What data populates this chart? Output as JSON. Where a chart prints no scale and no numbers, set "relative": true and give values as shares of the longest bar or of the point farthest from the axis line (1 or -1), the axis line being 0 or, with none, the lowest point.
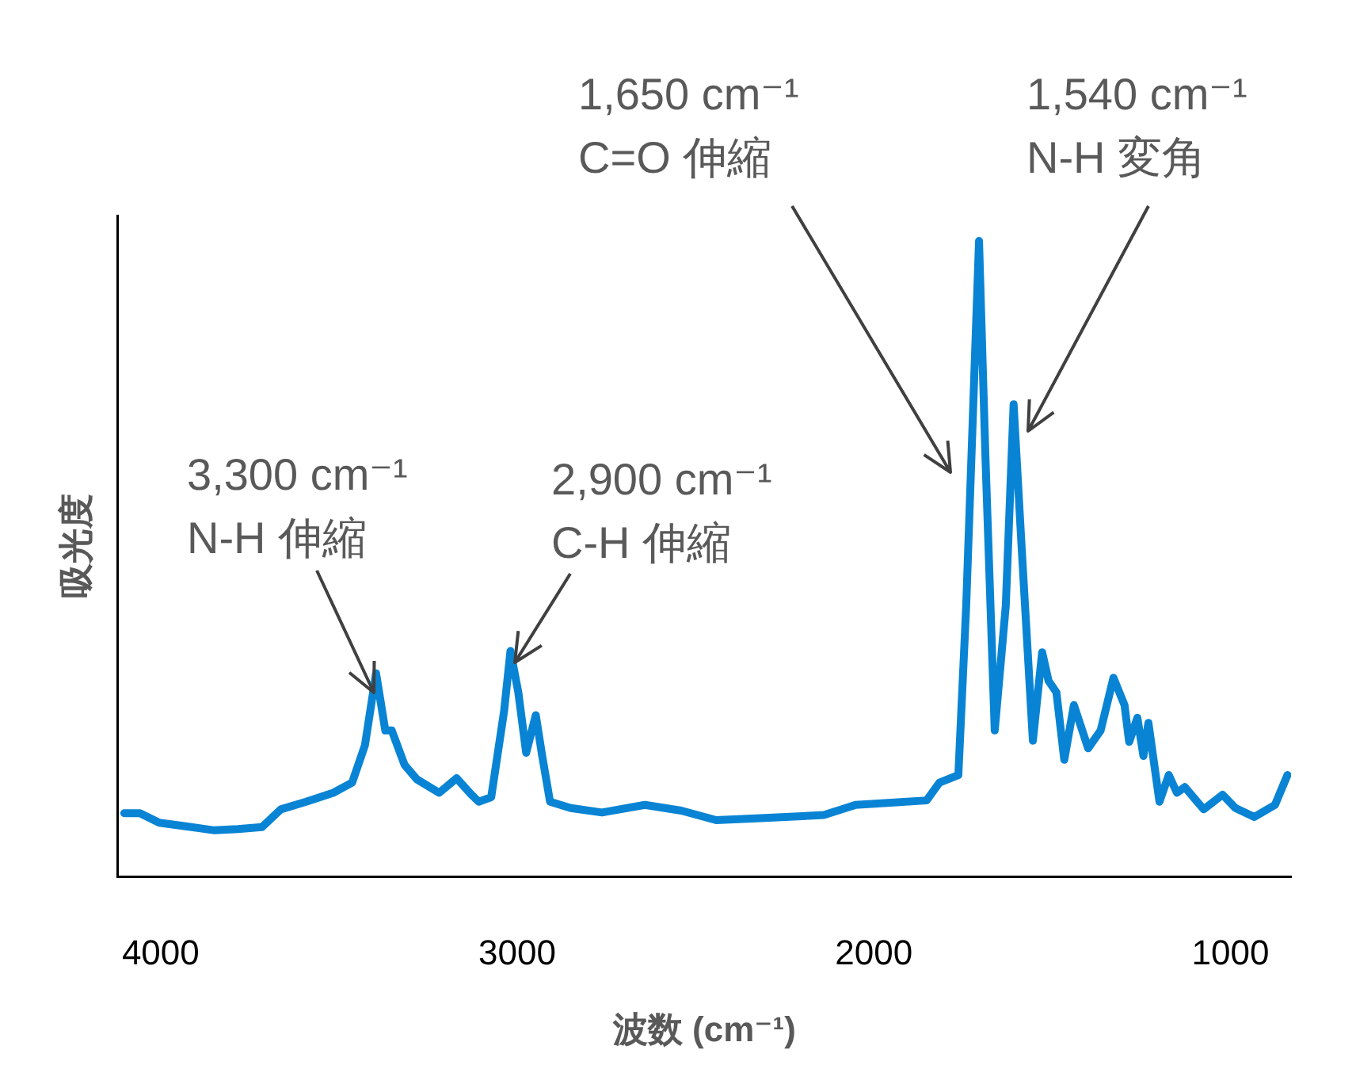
{
  "chart_data": {
    "type": "line",
    "xlabel": "波数 (cm⁻¹)",
    "ylabel": "吸光度",
    "relative": true,
    "xlim": [
      4120,
      830
    ],
    "xticks": [
      4000,
      3000,
      2000,
      1000
    ],
    "grid": false,
    "legend": false,
    "marker": "none",
    "line_style": "solid",
    "x": [
      4102,
      4058,
      4004,
      3938,
      3849,
      3783,
      3716,
      3663,
      3592,
      3516,
      3463,
      3427,
      3396,
      3370,
      3352,
      3316,
      3281,
      3219,
      3170,
      3130,
      3108,
      3073,
      3037,
      3019,
      2997,
      2975,
      2948,
      2930,
      2908,
      2850,
      2762,
      2642,
      2540,
      2442,
      2318,
      2140,
      2051,
      1852,
      1816,
      1763,
      1741,
      1705,
      1687,
      1661,
      1630,
      1608,
      1585,
      1554,
      1528,
      1510,
      1488,
      1466,
      1439,
      1399,
      1364,
      1328,
      1297,
      1284,
      1261,
      1244,
      1230,
      1199,
      1173,
      1150,
      1128,
      1075,
      1022,
      986,
      933,
      875,
      840
    ],
    "series": [
      {
        "color": "#0984d4",
        "values": [
          0.1,
          0.1,
          0.085,
          0.08,
          0.073,
          0.075,
          0.078,
          0.106,
          0.118,
          0.132,
          0.148,
          0.207,
          0.32,
          0.23,
          0.23,
          0.176,
          0.153,
          0.132,
          0.155,
          0.13,
          0.118,
          0.125,
          0.26,
          0.355,
          0.29,
          0.195,
          0.254,
          0.19,
          0.118,
          0.108,
          0.101,
          0.113,
          0.104,
          0.089,
          0.092,
          0.097,
          0.113,
          0.12,
          0.148,
          0.16,
          0.426,
          1,
          0.66,
          0.23,
          0.426,
          0.743,
          0.513,
          0.214,
          0.353,
          0.308,
          0.29,
          0.184,
          0.27,
          0.202,
          0.23,
          0.313,
          0.27,
          0.212,
          0.25,
          0.19,
          0.242,
          0.118,
          0.16,
          0.132,
          0.141,
          0.106,
          0.129,
          0.108,
          0.094,
          0.113,
          0.16
        ]
      }
    ],
    "annotations": [
      "3,300 cm⁻¹\nN-H 伸縮",
      "2,900 cm⁻¹\nC-H 伸縮",
      "1,650 cm⁻¹\nC=O 伸縮",
      "1,540 cm⁻¹\nN-H 変角"
    ]
  }
}
